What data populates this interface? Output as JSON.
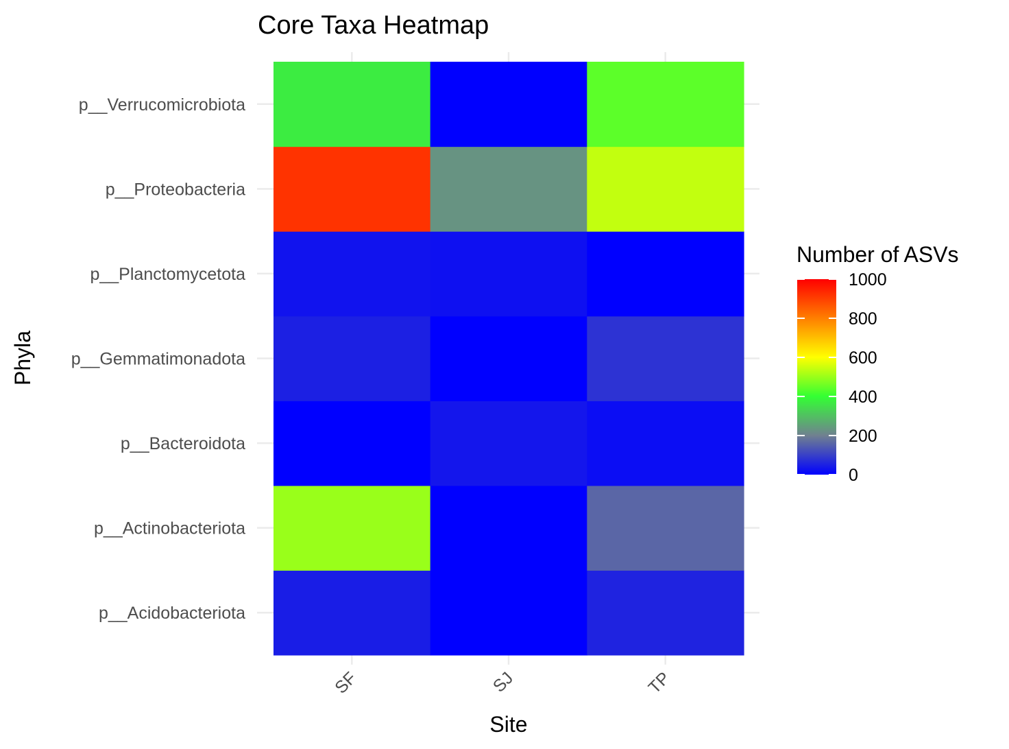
{
  "chart_data": {
    "type": "heatmap",
    "title": "Core Taxa Heatmap",
    "xlabel": "Site",
    "ylabel": "Phyla",
    "x_categories": [
      "SF",
      "SJ",
      "TP"
    ],
    "y_categories": [
      "p__Acidobacteriota",
      "p__Actinobacteriota",
      "p__Bacteroidota",
      "p__Gemmatimonadota",
      "p__Planctomycetota",
      "p__Proteobacteria",
      "p__Verrucomicrobiota"
    ],
    "values": [
      {
        "phylum": "p__Acidobacteriota",
        "SF": 45,
        "SJ": 0,
        "TP": 55
      },
      {
        "phylum": "p__Actinobacteriota",
        "SF": 500,
        "SJ": 0,
        "TP": 160
      },
      {
        "phylum": "p__Bacteroidota",
        "SF": 0,
        "SJ": 35,
        "TP": 20
      },
      {
        "phylum": "p__Gemmatimonadota",
        "SF": 50,
        "SJ": 0,
        "TP": 80
      },
      {
        "phylum": "p__Planctomycetota",
        "SF": 30,
        "SJ": 25,
        "TP": 0
      },
      {
        "phylum": "p__Proteobacteria",
        "SF": 920,
        "SJ": 230,
        "TP": 540
      },
      {
        "phylum": "p__Verrucomicrobiota",
        "SF": 370,
        "SJ": 0,
        "TP": 440
      }
    ],
    "legend": {
      "title": "Number of ASVs",
      "ticks": [
        0,
        200,
        400,
        600,
        800,
        1000
      ],
      "tick_labels": [
        "0",
        "200",
        "400",
        "600",
        "800",
        "1000"
      ],
      "range": [
        0,
        1000
      ],
      "position": "right"
    },
    "grid": true
  },
  "colors": {
    "scale": [
      "#0000ff",
      "#708090",
      "#33ff33",
      "#ffff00",
      "#ff7f00",
      "#ff0000"
    ]
  }
}
